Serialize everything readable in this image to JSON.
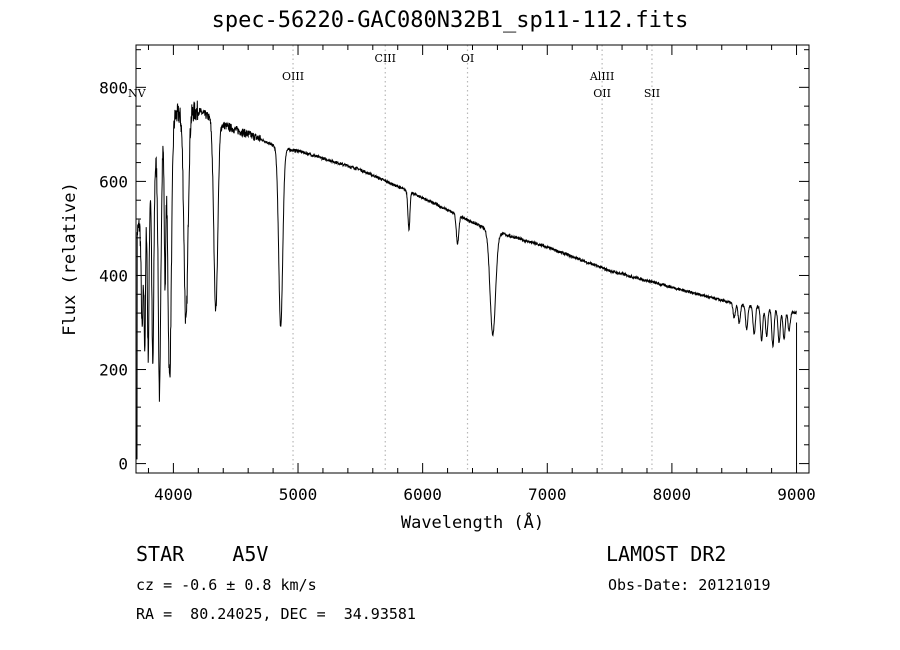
{
  "title": "spec-56220-GAC080N32B1_sp11-112.fits",
  "chart_data": {
    "type": "line",
    "title": "spec-56220-GAC080N32B1_sp11-112.fits",
    "xlabel": "Wavelength (Å)",
    "ylabel": "Flux (relative)",
    "xlim": [
      3700,
      9100
    ],
    "ylim": [
      -20,
      890
    ],
    "x_ticks": [
      4000,
      5000,
      6000,
      7000,
      8000,
      9000
    ],
    "y_ticks": [
      0,
      200,
      400,
      600,
      800
    ],
    "grid": false,
    "line_markers": [
      {
        "label": "NV",
        "wavelength": 3720,
        "dotted": false
      },
      {
        "label": "OIII",
        "wavelength": 4960,
        "dotted": true
      },
      {
        "label": "CIII",
        "wavelength": 5700,
        "dotted": true
      },
      {
        "label": "OI",
        "wavelength": 6360,
        "dotted": true
      },
      {
        "label": "AlIII",
        "wavelength": 7440,
        "dotted": true
      },
      {
        "label": "OII",
        "wavelength": 7440,
        "dotted": false
      },
      {
        "label": "SII",
        "wavelength": 7840,
        "dotted": true
      }
    ],
    "continuum": {
      "x": [
        3700,
        3850,
        4000,
        4200,
        4400,
        4700,
        4850,
        5000,
        5500,
        6000,
        6500,
        7000,
        7500,
        8000,
        8500,
        8800,
        9000
      ],
      "y": [
        480,
        640,
        740,
        750,
        720,
        690,
        670,
        665,
        625,
        565,
        500,
        460,
        410,
        375,
        340,
        330,
        320
      ]
    },
    "absorption_lines": [
      {
        "wavelength": 3750,
        "depth": 250,
        "width": 8
      },
      {
        "wavelength": 3771,
        "depth": 300,
        "width": 6
      },
      {
        "wavelength": 3798,
        "depth": 350,
        "width": 7
      },
      {
        "wavelength": 3835,
        "depth": 420,
        "width": 8
      },
      {
        "wavelength": 3889,
        "depth": 520,
        "width": 10
      },
      {
        "wavelength": 3933,
        "depth": 300,
        "width": 6
      },
      {
        "wavelength": 3970,
        "depth": 540,
        "width": 14
      },
      {
        "wavelength": 4101,
        "depth": 450,
        "width": 16
      },
      {
        "wavelength": 4340,
        "depth": 400,
        "width": 16
      },
      {
        "wavelength": 4861,
        "depth": 380,
        "width": 16
      },
      {
        "wavelength": 5890,
        "depth": 80,
        "width": 8
      },
      {
        "wavelength": 6280,
        "depth": 60,
        "width": 10
      },
      {
        "wavelength": 6563,
        "depth": 220,
        "width": 22
      }
    ],
    "telluric_dips": {
      "x": [
        8500,
        8540,
        8600,
        8660,
        8720,
        8760,
        8810,
        8860,
        8900,
        8940
      ],
      "depth": [
        30,
        40,
        50,
        60,
        70,
        60,
        80,
        70,
        60,
        40
      ]
    }
  },
  "footer": {
    "object_class": "STAR    A5V",
    "survey": "LAMOST DR2",
    "redshift": "cz = -0.6 ± 0.8 km/s",
    "obs_date": "Obs-Date: 20121019",
    "coordinates": "RA =  80.24025, DEC =  34.93581"
  }
}
